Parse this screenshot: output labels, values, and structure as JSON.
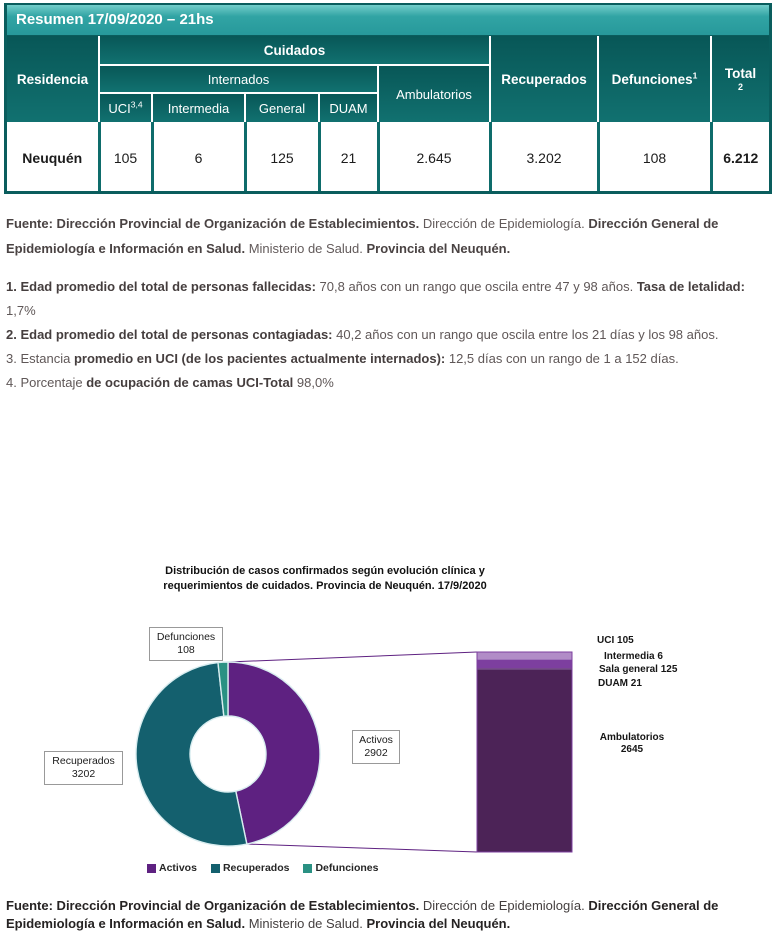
{
  "summary_table": {
    "title": "Resumen 17/09/2020 – 21hs",
    "headers": {
      "residencia": "Residencia",
      "cuidados": "Cuidados",
      "internados": "Internados",
      "uci": "UCI",
      "uci_sup": "3,4",
      "intermedia": "Intermedia",
      "general": "General",
      "duam": "DUAM",
      "ambulatorios": "Ambulatorios",
      "recuperados": "Recuperados",
      "defunciones": "Defunciones",
      "defunciones_sup": "1",
      "total": "Total",
      "total_sub": "2"
    },
    "row": {
      "residencia": "Neuquén",
      "uci": "105",
      "intermedia": "6",
      "general": "125",
      "duam": "21",
      "ambulatorios": "2.645",
      "recuperados": "3.202",
      "defunciones": "108",
      "total": "6.212"
    }
  },
  "source_top": {
    "segments": [
      {
        "b": 1,
        "t": "Fuente: Dirección Provincial de Organización de Establecimientos. "
      },
      {
        "b": 0,
        "t": "Dirección de Epidemiología. "
      },
      {
        "b": 1,
        "t": "Dirección General de Epidemiología e Información en Salud. "
      },
      {
        "b": 0,
        "t": "Ministerio de Salud. "
      },
      {
        "b": 1,
        "t": "Provincia del Neuquén."
      }
    ]
  },
  "notes": [
    [
      {
        "b": 1,
        "t": "1. Edad promedio del total de personas fallecidas: "
      },
      {
        "b": 0,
        "t": "70,8 años con un rango que oscila entre 47 y 98 años. "
      },
      {
        "b": 1,
        "t": "Tasa de letalidad: "
      },
      {
        "b": 0,
        "t": "1,7%"
      }
    ],
    [
      {
        "b": 1,
        "t": "2. Edad promedio del total de personas contagiadas: "
      },
      {
        "b": 0,
        "t": "40,2 años con un rango que oscila entre los 21 días y los 98 años."
      }
    ],
    [
      {
        "b": 0,
        "t": "3. Estancia "
      },
      {
        "b": 1,
        "t": "promedio en UCI (de los pacientes actualmente internados): "
      },
      {
        "b": 0,
        "t": "12,5 días con un rango de 1 a 152 días."
      }
    ],
    [
      {
        "b": 0,
        "t": "4. Porcentaje "
      },
      {
        "b": 1,
        "t": "de ocupación de camas UCI-Total "
      },
      {
        "b": 0,
        "t": "98,0%"
      }
    ]
  ],
  "chart_data": {
    "type": "pie",
    "subtype": "donut-with-breakdown-bar",
    "title": "Distribución de casos confirmados según evolución clínica y requerimientos de cuidados. Provincia de Neuquén. 17/9/2020",
    "title_lines": [
      "Distribución de casos confirmados según evolución clínica y",
      "requerimientos de cuidados. Provincia de Neuquén. 17/9/2020"
    ],
    "slices": [
      {
        "label": "Activos",
        "value": 2902,
        "color": "#5e2181"
      },
      {
        "label": "Recuperados",
        "value": 3202,
        "color": "#14606e"
      },
      {
        "label": "Defunciones",
        "value": 108,
        "color": "#2a9183"
      }
    ],
    "breakdown_bar": {
      "of_slice": "Activos",
      "segments": [
        {
          "label": "UCI",
          "value": 105,
          "color": "#b18cc7"
        },
        {
          "label": "Intermedia",
          "value": 6,
          "color": "#9166b4"
        },
        {
          "label": "Sala general",
          "value": 125,
          "color": "#7d3f9f"
        },
        {
          "label": "DUAM",
          "value": 21,
          "color": "#5f2e75"
        },
        {
          "label": "Ambulatorios",
          "value": 2645,
          "color": "#4c2357"
        }
      ]
    },
    "legend_position": "bottom",
    "slice_outline_color": "#d9edf0",
    "connector_color": "#5e2181"
  },
  "source_bottom": {
    "segments": [
      {
        "b": 1,
        "t": "Fuente: Dirección Provincial de Organización de Establecimientos. "
      },
      {
        "b": 0,
        "t": "Dirección de Epidemiología. "
      },
      {
        "b": 1,
        "t": "Dirección General de Epidemiología e Información en Salud. "
      },
      {
        "b": 0,
        "t": "Ministerio de Salud. "
      },
      {
        "b": 1,
        "t": "Provincia del Neuquén."
      }
    ]
  }
}
